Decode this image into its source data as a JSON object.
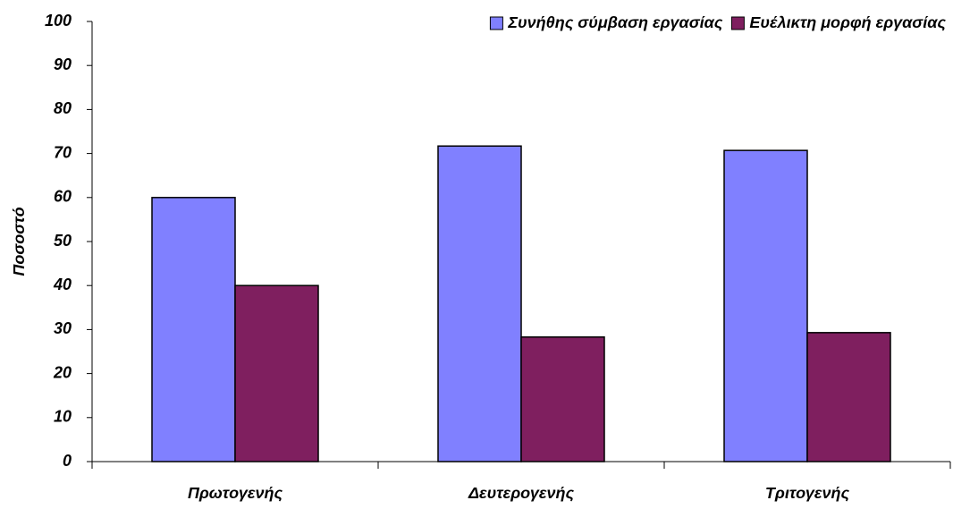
{
  "chart_data": {
    "type": "bar",
    "ylabel": "Ποσοστό",
    "categories": [
      "Πρωτογενής",
      "Δευτερογενής",
      "Τριτογενής"
    ],
    "series": [
      {
        "name": "Συνήθης σύμβαση  εργασίας",
        "color": "#8080ff",
        "values": [
          60,
          71.7,
          70.7
        ]
      },
      {
        "name": "Ευέλικτη μορφή εργασίας",
        "color": "#7f1f5f",
        "values": [
          40,
          28.3,
          29.3
        ]
      }
    ],
    "ylim": [
      0,
      100
    ],
    "yticks": [
      0,
      10,
      20,
      30,
      40,
      50,
      60,
      70,
      80,
      90,
      100
    ],
    "grid": false,
    "legend": "top-right"
  }
}
